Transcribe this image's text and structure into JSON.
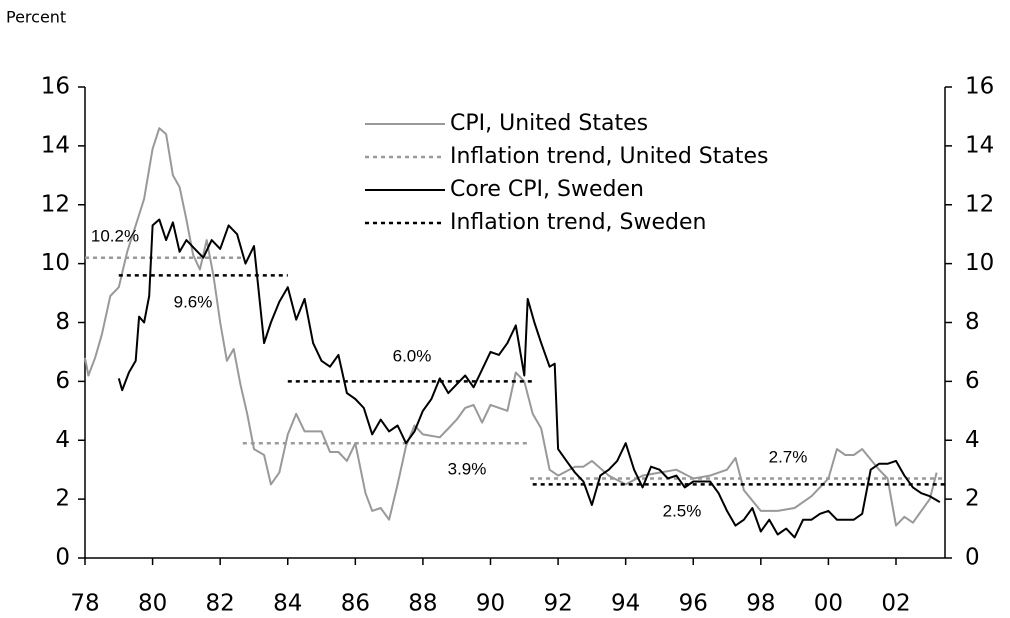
{
  "chart_data": {
    "type": "line",
    "y_axis_label": "Percent",
    "xlim": [
      1978,
      2003.45
    ],
    "xticks": [
      {
        "value": 1978,
        "label": "78"
      },
      {
        "value": 1980,
        "label": "80"
      },
      {
        "value": 1982,
        "label": "82"
      },
      {
        "value": 1984,
        "label": "84"
      },
      {
        "value": 1986,
        "label": "86"
      },
      {
        "value": 1988,
        "label": "88"
      },
      {
        "value": 1990,
        "label": "90"
      },
      {
        "value": 1992,
        "label": "92"
      },
      {
        "value": 1994,
        "label": "94"
      },
      {
        "value": 1996,
        "label": "96"
      },
      {
        "value": 1998,
        "label": "98"
      },
      {
        "value": 2000,
        "label": "00"
      },
      {
        "value": 2002,
        "label": "02"
      }
    ],
    "ylim": [
      0,
      16
    ],
    "yticks": [
      0,
      2,
      4,
      6,
      8,
      10,
      12,
      14,
      16
    ],
    "y2lim": [
      0,
      16
    ],
    "y2ticks": [
      0,
      2,
      4,
      6,
      8,
      10,
      12,
      14,
      16
    ],
    "grid": false,
    "legend": "top",
    "series": [
      {
        "name": "CPI, United States",
        "color": "#999999",
        "dashed": false,
        "x": [
          1978.0,
          1978.1,
          1978.3,
          1978.5,
          1978.75,
          1979.0,
          1979.25,
          1979.5,
          1979.75,
          1980.0,
          1980.2,
          1980.4,
          1980.6,
          1980.8,
          1981.0,
          1981.2,
          1981.4,
          1981.6,
          1981.8,
          1982.0,
          1982.2,
          1982.4,
          1982.6,
          1982.8,
          1983.0,
          1983.3,
          1983.5,
          1983.75,
          1984.0,
          1984.25,
          1984.5,
          1984.75,
          1985.0,
          1985.25,
          1985.5,
          1985.75,
          1986.0,
          1986.3,
          1986.5,
          1986.75,
          1987.0,
          1987.25,
          1987.5,
          1987.75,
          1988.0,
          1988.5,
          1988.75,
          1989.0,
          1989.25,
          1989.5,
          1989.75,
          1990.0,
          1990.5,
          1990.75,
          1991.0,
          1991.25,
          1991.5,
          1991.75,
          1992.0,
          1992.5,
          1992.75,
          1993.0,
          1993.5,
          1994.0,
          1994.5,
          1995.0,
          1995.5,
          1996.0,
          1996.5,
          1997.0,
          1997.25,
          1997.5,
          1998.0,
          1998.5,
          1999.0,
          1999.5,
          2000.0,
          2000.25,
          2000.5,
          2000.75,
          2001.0,
          2001.5,
          2001.75,
          2002.0,
          2002.25,
          2002.5,
          2002.75,
          2003.0,
          2003.2
        ],
        "values": [
          6.8,
          6.2,
          6.8,
          7.6,
          8.9,
          9.2,
          10.4,
          11.3,
          12.2,
          13.9,
          14.6,
          14.4,
          13.0,
          12.6,
          11.5,
          10.3,
          9.8,
          10.8,
          9.6,
          8.0,
          6.7,
          7.1,
          5.9,
          4.9,
          3.7,
          3.5,
          2.5,
          2.9,
          4.2,
          4.9,
          4.3,
          4.3,
          4.3,
          3.6,
          3.6,
          3.3,
          3.9,
          2.2,
          1.6,
          1.7,
          1.3,
          2.5,
          3.8,
          4.5,
          4.2,
          4.1,
          4.4,
          4.7,
          5.1,
          5.2,
          4.6,
          5.2,
          5.0,
          6.3,
          6.0,
          4.9,
          4.4,
          3.0,
          2.8,
          3.1,
          3.1,
          3.3,
          2.8,
          2.5,
          2.8,
          2.9,
          3.0,
          2.7,
          2.8,
          3.0,
          3.4,
          2.3,
          1.6,
          1.6,
          1.7,
          2.1,
          2.7,
          3.7,
          3.5,
          3.5,
          3.7,
          3.0,
          2.7,
          1.1,
          1.4,
          1.2,
          1.6,
          2.0,
          2.9
        ]
      },
      {
        "name": "Inflation trend, United States",
        "color": "#999999",
        "dashed": true,
        "x": [
          1978,
          1982.67,
          1982.67,
          1982.67,
          1991.17,
          1991.17,
          1991.17,
          2003.45
        ],
        "values": [
          10.2,
          10.2,
          null,
          3.9,
          3.9,
          null,
          2.7,
          2.7
        ]
      },
      {
        "name": "Core CPI, Sweden",
        "color": "#000000",
        "dashed": false,
        "x": [
          1979.0,
          1979.1,
          1979.3,
          1979.5,
          1979.6,
          1979.75,
          1979.9,
          1980.0,
          1980.2,
          1980.4,
          1980.6,
          1980.8,
          1981.0,
          1981.25,
          1981.5,
          1981.75,
          1982.0,
          1982.25,
          1982.5,
          1982.75,
          1983.0,
          1983.3,
          1983.5,
          1983.75,
          1984.0,
          1984.25,
          1984.5,
          1984.75,
          1985.0,
          1985.25,
          1985.5,
          1985.75,
          1986.0,
          1986.25,
          1986.5,
          1986.75,
          1987.0,
          1987.25,
          1987.5,
          1987.75,
          1988.0,
          1988.25,
          1988.5,
          1988.75,
          1989.0,
          1989.25,
          1989.5,
          1989.75,
          1990.0,
          1990.25,
          1990.5,
          1990.75,
          1991.0,
          1991.1,
          1991.3,
          1991.5,
          1991.75,
          1991.9,
          1992.0,
          1992.25,
          1992.5,
          1992.75,
          1993.0,
          1993.25,
          1993.5,
          1993.75,
          1994.0,
          1994.25,
          1994.5,
          1994.75,
          1995.0,
          1995.25,
          1995.5,
          1995.75,
          1996.0,
          1996.5,
          1996.75,
          1997.0,
          1997.25,
          1997.5,
          1997.75,
          1998.0,
          1998.25,
          1998.5,
          1998.75,
          1999.0,
          1999.25,
          1999.5,
          1999.75,
          2000.0,
          2000.25,
          2000.5,
          2000.75,
          2001.0,
          2001.25,
          2001.5,
          2001.75,
          2002.0,
          2002.25,
          2002.5,
          2002.75,
          2003.0,
          2003.3
        ],
        "values": [
          6.1,
          5.7,
          6.3,
          6.7,
          8.2,
          8.0,
          8.9,
          11.3,
          11.5,
          10.8,
          11.4,
          10.4,
          10.8,
          10.5,
          10.2,
          10.8,
          10.5,
          11.3,
          11.0,
          10.0,
          10.6,
          7.3,
          8.0,
          8.7,
          9.2,
          8.1,
          8.8,
          7.3,
          6.7,
          6.5,
          6.9,
          5.6,
          5.4,
          5.1,
          4.2,
          4.7,
          4.3,
          4.5,
          3.9,
          4.3,
          5.0,
          5.4,
          6.1,
          5.6,
          5.9,
          6.2,
          5.8,
          6.4,
          7.0,
          6.9,
          7.3,
          7.9,
          6.2,
          8.8,
          8.0,
          7.3,
          6.5,
          6.6,
          3.7,
          3.3,
          2.9,
          2.6,
          1.8,
          2.8,
          3.0,
          3.3,
          3.9,
          3.0,
          2.4,
          3.1,
          3.0,
          2.7,
          2.8,
          2.4,
          2.6,
          2.6,
          2.2,
          1.6,
          1.1,
          1.3,
          1.7,
          0.9,
          1.3,
          0.8,
          1.0,
          0.7,
          1.3,
          1.3,
          1.5,
          1.6,
          1.3,
          1.3,
          1.3,
          1.5,
          3.0,
          3.2,
          3.2,
          3.3,
          2.8,
          2.4,
          2.2,
          2.1,
          1.9
        ]
      },
      {
        "name": "Inflation trend, Sweden",
        "color": "#000000",
        "dashed": true,
        "x": [
          1979,
          1984,
          1984,
          1984,
          1991.25,
          1991.25,
          1991.25,
          2003.45
        ],
        "values": [
          9.6,
          9.6,
          null,
          6.0,
          6.0,
          null,
          2.5,
          2.5
        ]
      }
    ],
    "annotations": [
      "10.2%",
      "9.6%",
      "6.0%",
      "3.9%",
      "2.7%",
      "2.5%"
    ]
  }
}
